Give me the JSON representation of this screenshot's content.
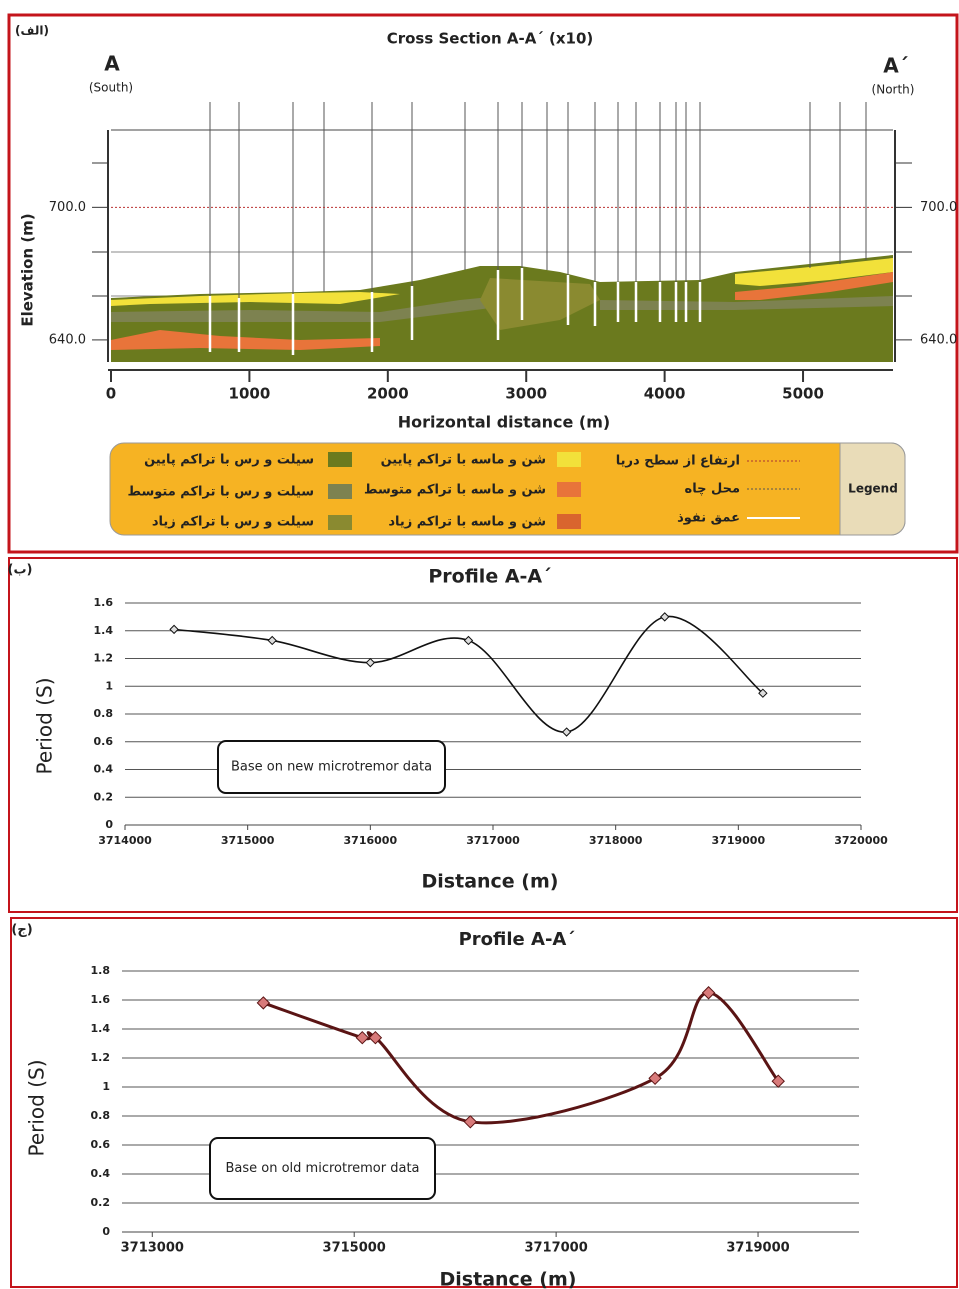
{
  "cross_section": {
    "panel_label": "(الف)",
    "title": "Cross Section A-A´ (x10)",
    "left_end": "A",
    "left_direction": "(South)",
    "right_end": "A´",
    "right_direction": "(North)",
    "ylabel": "Elevation (m)",
    "xlabel": "Horizontal distance (m)",
    "xlim": [
      0,
      5650
    ],
    "ylim": [
      630,
      735
    ],
    "xticks": [
      0,
      1000,
      2000,
      3000,
      4000,
      5000
    ],
    "yticks": [
      {
        "value": 700,
        "label": "700.0"
      },
      {
        "value": 640,
        "label": "640.0"
      }
    ],
    "legend": {
      "title": "Legend",
      "items": [
        "ارتفاع از سطح دریا",
        "محل چاه",
        "عمق نفوذ",
        "شن و ماسه با تراکم پایین",
        "شن و ماسه با تراکم متوسط",
        "شن و ماسه با تراکم زیاد",
        "سیلت و رس با تراکم پایین",
        "سیلت و رس با تراکم متوسط",
        "سیلت و رس با تراکم زیاد"
      ]
    }
  },
  "chart_data": [
    {
      "type": "line",
      "panel_label": "(ب)",
      "title": "Profile A-A´",
      "xlabel": "Distance (m)",
      "ylabel": "Period (S)",
      "annotation": "Base on new microtremor data",
      "x": [
        3714400,
        3715200,
        3716000,
        3716800,
        3717600,
        3718400,
        3719200
      ],
      "series": [
        {
          "color": "#111111",
          "values": [
            1.41,
            1.33,
            1.17,
            1.33,
            0.67,
            1.5,
            0.95
          ]
        }
      ],
      "xlim": [
        3714000,
        3720000
      ],
      "xticks": [
        3714000,
        3715000,
        3716000,
        3717000,
        3718000,
        3719000,
        3720000
      ],
      "ylim": [
        0,
        1.6
      ],
      "yticks": [
        0,
        0.2,
        0.4,
        0.6,
        0.8,
        1,
        1.2,
        1.4,
        1.6
      ],
      "grid": true
    },
    {
      "type": "line",
      "panel_label": "(ج)",
      "title": "Profile A-A´",
      "xlabel": "Distance (m)",
      "ylabel": "Period (S)",
      "annotation": "Base on old microtremor data",
      "x": [
        3714100,
        3715080,
        3715210,
        3716150,
        3717980,
        3718510,
        3719200
      ],
      "series": [
        {
          "color": "#5a1414",
          "values": [
            1.58,
            1.34,
            1.34,
            0.76,
            1.06,
            1.65,
            1.04
          ]
        }
      ],
      "xlim": [
        3712700,
        3720000
      ],
      "xticks": [
        3713000,
        3715000,
        3717000,
        3719000
      ],
      "ylim": [
        0,
        1.8
      ],
      "yticks": [
        0,
        0.2,
        0.4,
        0.6,
        0.8,
        1,
        1.2,
        1.4,
        1.6,
        1.8
      ],
      "grid": true
    }
  ]
}
